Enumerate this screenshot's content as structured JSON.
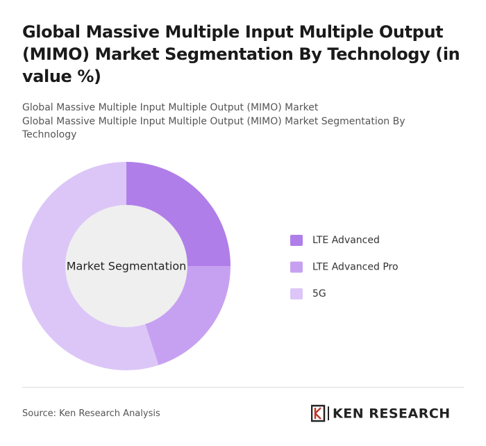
{
  "chart_data": {
    "type": "donut",
    "title": "Global Massive Multiple Input Multiple Output (MIMO) Market Segmentation By Technology (in value %)",
    "subtitle": "Global Massive Multiple Input Multiple Output (MIMO) Market",
    "subtitle2": "Global Massive Multiple Input Multiple Output (MIMO) Market Segmentation By Technology",
    "center_label": "Market Segmentation",
    "categories": [
      "LTE Advanced",
      "LTE Advanced Pro",
      "5G"
    ],
    "values": [
      25,
      20,
      55
    ],
    "colors": [
      "#b07ee9",
      "#c7a1f1",
      "#dcc6f7"
    ],
    "source": "Source: Ken Research Analysis",
    "logo": "KEN RESEARCH"
  }
}
